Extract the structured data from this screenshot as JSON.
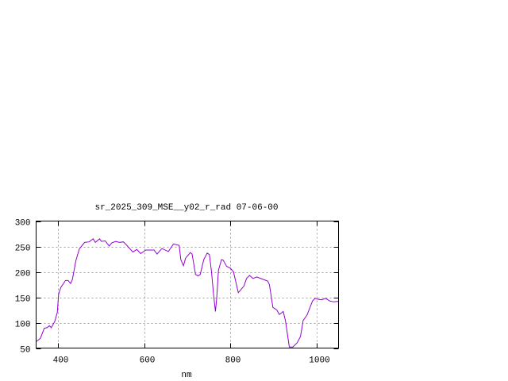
{
  "chart_data": {
    "type": "line",
    "title": "sr_2025_309_MSE__y02_r_rad 07-06-00",
    "xlabel": "nm",
    "ylabel": "",
    "xlim": [
      350,
      1050
    ],
    "ylim": [
      50,
      300
    ],
    "xticks": [
      400,
      600,
      800,
      1000
    ],
    "yticks": [
      50,
      100,
      150,
      200,
      250,
      300
    ],
    "grid": true,
    "line_color": "#9400d3",
    "series": [
      {
        "x": [
          350,
          352,
          360,
          369,
          375,
          381,
          385,
          393,
          399,
          402,
          407,
          418,
          424,
          430,
          434,
          442,
          450,
          462,
          473,
          482,
          487,
          497,
          501,
          510,
          519,
          525,
          534,
          543,
          552,
          558,
          574,
          583,
          592,
          604,
          623,
          630,
          641,
          656,
          668,
          681,
          685,
          691,
          696,
          707,
          711,
          719,
          725,
          730,
          738,
          746,
          751,
          756,
          760,
          765,
          768,
          772,
          779,
          783,
          791,
          800,
          807,
          818,
          831,
          837,
          844,
          852,
          861,
          873,
          886,
          890,
          898,
          907,
          913,
          922,
          927,
          936,
          944,
          954,
          962,
          968,
          977,
          990,
          996,
          1003,
          1011,
          1020,
          1029,
          1039,
          1050
        ],
        "y": [
          63,
          64,
          69,
          89,
          90,
          94,
          90,
          102,
          120,
          156,
          169,
          183,
          183,
          177,
          185,
          222,
          245,
          258,
          259,
          265,
          258,
          265,
          260,
          261,
          251,
          257,
          260,
          258,
          259,
          254,
          239,
          244,
          236,
          243,
          243,
          235,
          246,
          240,
          255,
          252,
          224,
          212,
          227,
          238,
          235,
          195,
          192,
          195,
          224,
          237,
          234,
          200,
          161,
          122,
          148,
          203,
          224,
          223,
          211,
          207,
          200,
          159,
          172,
          187,
          193,
          187,
          190,
          186,
          182,
          175,
          130,
          125,
          116,
          122,
          104,
          52,
          52,
          60,
          73,
          104,
          115,
          143,
          148,
          146,
          145,
          148,
          143,
          141,
          142
        ]
      }
    ]
  }
}
